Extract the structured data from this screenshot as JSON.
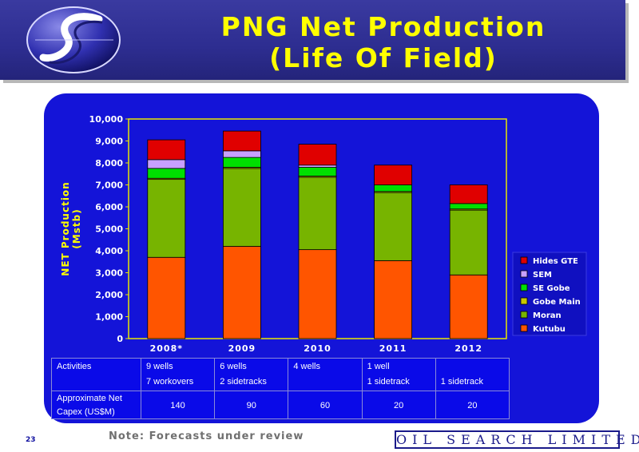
{
  "slide": {
    "title_line1": "PNG Net Production",
    "title_line2": "(Life Of Field)",
    "page_number": "23",
    "note": "Note: Forecasts under review",
    "company": "OIL SEARCH LIMITED"
  },
  "colors": {
    "background_panel": "#1414d8",
    "title_bar": "#2d2d90",
    "title_text": "#ffff00",
    "axis_label": "#ffff00",
    "tick_label": "#ffffff",
    "Kutubu": "#ff5500",
    "Moran": "#77b400",
    "Gobe Main": "#c8c800",
    "SE Gobe": "#00e000",
    "SEM": "#c8a0ff",
    "Hides GTE": "#e00000"
  },
  "chart_data": {
    "type": "bar",
    "stacked": true,
    "categories": [
      "2008*",
      "2009",
      "2010",
      "2011",
      "2012"
    ],
    "series": [
      {
        "name": "Kutubu",
        "values": [
          3700,
          4200,
          4050,
          3550,
          2900
        ]
      },
      {
        "name": "Moran",
        "values": [
          3550,
          3550,
          3300,
          3100,
          2950
        ]
      },
      {
        "name": "Gobe Main",
        "values": [
          50,
          50,
          50,
          50,
          50
        ]
      },
      {
        "name": "SE Gobe",
        "values": [
          450,
          450,
          400,
          300,
          250
        ]
      },
      {
        "name": "SEM",
        "values": [
          400,
          300,
          100,
          0,
          0
        ]
      },
      {
        "name": "Hides GTE",
        "values": [
          900,
          900,
          950,
          900,
          850
        ]
      }
    ],
    "ylabel": "NET Production (Mstb)",
    "xlabel": "",
    "ylim": [
      0,
      10000
    ],
    "yticks": [
      0,
      1000,
      2000,
      3000,
      4000,
      5000,
      6000,
      7000,
      8000,
      9000,
      10000
    ],
    "ytick_labels": [
      "0",
      "1,000",
      "2,000",
      "3,000",
      "4,000",
      "5,000",
      "6,000",
      "7,000",
      "8,000",
      "9,000",
      "10,000"
    ],
    "legend_position": "right",
    "legend_order": [
      "Hides GTE",
      "SEM",
      "SE Gobe",
      "Gobe Main",
      "Moran",
      "Kutubu"
    ],
    "grid": false
  },
  "table": {
    "rows": [
      {
        "label_lines": [
          "Activities"
        ],
        "cells": [
          [
            "9 wells",
            "7 workovers"
          ],
          [
            "6 wells",
            "2 sidetracks"
          ],
          [
            "4 wells"
          ],
          [
            "1 well",
            "1 sidetrack"
          ],
          [
            "",
            "1 sidetrack"
          ]
        ]
      },
      {
        "label_lines": [
          "Approximate Net",
          "Capex (US$M)"
        ],
        "cells": [
          [
            "140"
          ],
          [
            "90"
          ],
          [
            "60"
          ],
          [
            "20"
          ],
          [
            "20"
          ]
        ]
      }
    ]
  }
}
